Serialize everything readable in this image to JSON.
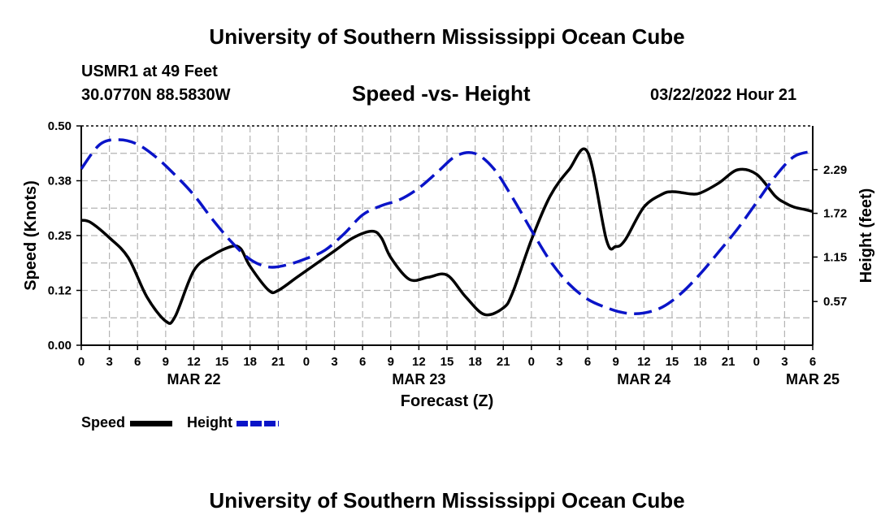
{
  "header": {
    "title": "University of Southern Mississippi Ocean Cube",
    "station": "USMR1 at 49 Feet",
    "coords": "30.0770N  88.5830W",
    "date": "03/22/2022 Hour 21"
  },
  "footer": {
    "title": "University of Southern Mississippi Ocean Cube"
  },
  "colors": {
    "speed": "#000000",
    "height": "#0a14c8",
    "grid": "#b4b4b4"
  },
  "legend": {
    "speed_label": "Speed",
    "height_label": "Height"
  },
  "chart_data": {
    "type": "line",
    "title": "Speed -vs- Height",
    "xlabel": "Forecast (Z)",
    "ylabel_left": "Speed (Knots)",
    "ylabel_right": "Height (feet)",
    "x_hours_range": [
      0,
      78
    ],
    "x_tick_labels": [
      "0",
      "3",
      "6",
      "9",
      "12",
      "15",
      "18",
      "21",
      "0",
      "3",
      "6",
      "9",
      "12",
      "15",
      "18",
      "21",
      "0",
      "3",
      "6",
      "9",
      "12",
      "15",
      "18",
      "21",
      "0",
      "3",
      "6"
    ],
    "date_labels": [
      {
        "label": "MAR 22",
        "hour": 12
      },
      {
        "label": "MAR 23",
        "hour": 36
      },
      {
        "label": "MAR 24",
        "hour": 60
      },
      {
        "label": "MAR 25",
        "hour": 78
      }
    ],
    "ylim_left": [
      0,
      0.5
    ],
    "yticks_left": [
      "0.00",
      "0.12",
      "0.25",
      "0.38",
      "0.50"
    ],
    "ylim_right": [
      0.0,
      2.86
    ],
    "yticks_right": [
      {
        "label": "0.57",
        "value": 0.57
      },
      {
        "label": "1.15",
        "value": 1.15
      },
      {
        "label": "1.72",
        "value": 1.72
      },
      {
        "label": "2.29",
        "value": 2.29
      }
    ],
    "series": [
      {
        "name": "Speed",
        "axis": "left",
        "style": "solid",
        "x": [
          0,
          1,
          3,
          5,
          7,
          9,
          10,
          12,
          14,
          16,
          17,
          18,
          20,
          21,
          23,
          25,
          27,
          29,
          31,
          32,
          33,
          35,
          37,
          39,
          41,
          43,
          45,
          46,
          48,
          50,
          52,
          54,
          56,
          57,
          58,
          60,
          62,
          63,
          64,
          65,
          66,
          68,
          70,
          72,
          74,
          75,
          76,
          77,
          78
        ],
        "values": [
          0.285,
          0.28,
          0.245,
          0.2,
          0.11,
          0.055,
          0.065,
          0.17,
          0.205,
          0.225,
          0.22,
          0.18,
          0.125,
          0.125,
          0.155,
          0.185,
          0.215,
          0.245,
          0.26,
          0.245,
          0.2,
          0.15,
          0.155,
          0.16,
          0.11,
          0.07,
          0.085,
          0.12,
          0.24,
          0.34,
          0.4,
          0.44,
          0.24,
          0.225,
          0.24,
          0.315,
          0.345,
          0.35,
          0.348,
          0.345,
          0.347,
          0.37,
          0.4,
          0.39,
          0.34,
          0.325,
          0.315,
          0.31,
          0.305
        ]
      },
      {
        "name": "Height",
        "axis": "right",
        "style": "dashed",
        "x": [
          0,
          2,
          4,
          6,
          8,
          10,
          12,
          14,
          16,
          18,
          20,
          22,
          24,
          26,
          28,
          30,
          32,
          34,
          36,
          38,
          40,
          42,
          44,
          46,
          48,
          50,
          52,
          54,
          56,
          58,
          60,
          62,
          64,
          66,
          68,
          70,
          72,
          74,
          76,
          78
        ],
        "values": [
          2.3,
          2.62,
          2.68,
          2.62,
          2.45,
          2.22,
          1.96,
          1.64,
          1.35,
          1.12,
          1.02,
          1.05,
          1.13,
          1.24,
          1.45,
          1.7,
          1.82,
          1.9,
          2.05,
          2.26,
          2.47,
          2.5,
          2.3,
          1.92,
          1.5,
          1.1,
          0.8,
          0.6,
          0.49,
          0.42,
          0.42,
          0.5,
          0.68,
          0.93,
          1.22,
          1.52,
          1.86,
          2.2,
          2.46,
          2.53
        ]
      }
    ]
  }
}
